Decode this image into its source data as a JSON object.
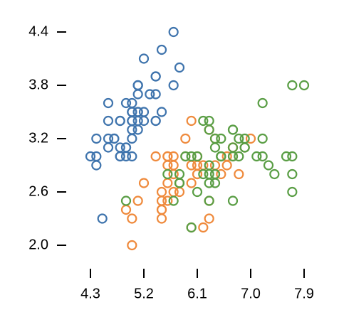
{
  "chart_data": {
    "type": "scatter",
    "xlim": [
      4.3,
      7.9
    ],
    "ylim": [
      2.0,
      4.4
    ],
    "xticks": [
      4.3,
      5.2,
      6.1,
      {
        "value": 7,
        "label": "7.0"
      },
      7.9
    ],
    "yticks": [
      {
        "value": 2,
        "label": "2.0"
      },
      2.6,
      3.2,
      3.8,
      4.4
    ],
    "series": [
      {
        "color": "#3f74ad",
        "x": [
          5.1,
          4.9,
          4.7,
          4.6,
          5.0,
          5.4,
          4.6,
          5.0,
          4.4,
          4.9,
          5.4,
          4.8,
          4.8,
          4.3,
          5.8,
          5.7,
          5.4,
          5.1,
          5.7,
          5.1,
          5.4,
          5.1,
          4.6,
          5.1,
          4.8,
          5.0,
          5.0,
          5.2,
          5.2,
          4.7,
          4.8,
          5.4,
          5.2,
          5.5,
          4.9,
          5.0,
          5.5,
          4.9,
          4.4,
          5.1,
          5.0,
          4.5,
          4.4,
          5.0,
          5.1,
          4.8,
          5.1,
          4.6,
          5.3,
          5.0
        ],
        "values": [
          3.5,
          3.0,
          3.2,
          3.1,
          3.6,
          3.9,
          3.4,
          3.4,
          2.9,
          3.1,
          3.7,
          3.4,
          3.0,
          3.0,
          4.0,
          4.4,
          3.9,
          3.5,
          3.8,
          3.8,
          3.4,
          3.7,
          3.6,
          3.3,
          3.4,
          3.0,
          3.4,
          3.5,
          3.4,
          3.2,
          3.1,
          3.4,
          4.1,
          4.2,
          3.1,
          3.2,
          3.5,
          3.6,
          3.0,
          3.4,
          3.5,
          2.3,
          3.2,
          3.5,
          3.8,
          3.0,
          3.8,
          3.2,
          3.7,
          3.3
        ]
      },
      {
        "color": "#ef8a3c",
        "x": [
          7.0,
          6.4,
          6.9,
          5.5,
          6.5,
          5.7,
          6.3,
          4.9,
          6.6,
          5.2,
          5.0,
          5.9,
          6.0,
          6.1,
          5.6,
          6.7,
          5.6,
          5.8,
          6.2,
          5.6,
          5.9,
          6.1,
          6.3,
          6.1,
          6.4,
          6.6,
          6.8,
          6.7,
          6.0,
          5.7,
          5.5,
          5.5,
          5.8,
          6.0,
          5.4,
          6.0,
          6.7,
          6.3,
          5.6,
          5.5,
          5.5,
          6.1,
          5.8,
          5.0,
          5.6,
          5.7,
          5.7,
          6.2,
          5.1,
          5.7
        ],
        "values": [
          3.2,
          3.2,
          3.1,
          2.3,
          2.8,
          2.8,
          3.3,
          2.4,
          2.9,
          2.7,
          2.0,
          3.0,
          2.2,
          2.9,
          2.9,
          3.1,
          3.0,
          2.7,
          2.2,
          2.5,
          3.2,
          2.8,
          2.5,
          2.8,
          2.9,
          3.0,
          2.8,
          3.0,
          2.9,
          2.6,
          2.4,
          2.4,
          2.7,
          2.7,
          3.0,
          3.4,
          3.1,
          2.3,
          3.0,
          2.5,
          2.6,
          3.0,
          2.6,
          2.3,
          2.7,
          3.0,
          2.9,
          2.9,
          2.5,
          2.8
        ]
      },
      {
        "color": "#5a9e45",
        "x": [
          6.3,
          5.8,
          7.1,
          6.3,
          6.5,
          7.6,
          4.9,
          7.3,
          6.7,
          7.2,
          6.5,
          6.4,
          6.8,
          5.7,
          5.8,
          6.4,
          6.5,
          7.7,
          7.7,
          6.0,
          6.9,
          5.6,
          7.7,
          6.3,
          6.7,
          7.2,
          6.2,
          6.1,
          6.4,
          7.2,
          7.4,
          7.9,
          6.4,
          6.3,
          6.1,
          7.7,
          6.3,
          6.4,
          6.0,
          6.9,
          6.7,
          6.9,
          5.8,
          6.8,
          6.7,
          6.7,
          6.3,
          6.5,
          6.2,
          5.9
        ],
        "values": [
          3.3,
          2.7,
          3.0,
          2.9,
          3.0,
          3.0,
          2.5,
          2.9,
          2.5,
          3.6,
          3.2,
          2.7,
          3.0,
          2.5,
          2.8,
          3.2,
          3.0,
          3.8,
          2.6,
          2.2,
          3.2,
          2.8,
          2.8,
          2.7,
          3.3,
          3.2,
          2.8,
          3.0,
          2.8,
          3.0,
          2.8,
          3.8,
          2.8,
          2.8,
          2.6,
          3.0,
          3.4,
          3.1,
          3.0,
          3.1,
          3.1,
          3.1,
          2.7,
          3.2,
          3.3,
          3.0,
          2.5,
          3.0,
          3.4,
          3.0
        ]
      }
    ]
  }
}
